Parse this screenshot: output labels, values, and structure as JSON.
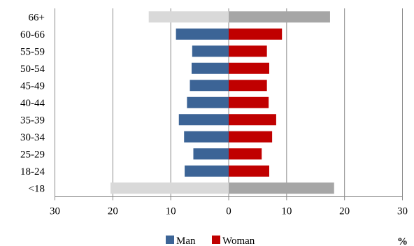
{
  "chart_data": {
    "type": "bar",
    "orientation": "horizontal-diverging",
    "categories": [
      "66+",
      "60-66",
      "55-59",
      "50-54",
      "45-49",
      "40-44",
      "35-39",
      "30-34",
      "25-29",
      "18-24",
      "<18"
    ],
    "series": [
      {
        "name": "Man",
        "values": [
          13.8,
          9.1,
          6.3,
          6.4,
          6.7,
          7.2,
          8.6,
          7.7,
          6.1,
          7.6,
          20.4
        ]
      },
      {
        "name": "Woman",
        "values": [
          17.5,
          9.2,
          6.6,
          7.0,
          6.6,
          6.9,
          8.2,
          7.5,
          5.7,
          7.0,
          18.2
        ]
      }
    ],
    "xticks": [
      "30",
      "20",
      "10",
      "0",
      "10",
      "20",
      "30"
    ],
    "xlim": [
      -30,
      30
    ],
    "unit_label": "%",
    "grid": "vertical",
    "legend_position": "bottom",
    "colors": {
      "man": "#3c6496",
      "woman": "#c00000",
      "man_highlight": "#d9d9d9",
      "woman_highlight": "#a6a6a6",
      "grid": "#8c8c8c"
    },
    "highlighted_categories": [
      "66+",
      "<18"
    ]
  }
}
